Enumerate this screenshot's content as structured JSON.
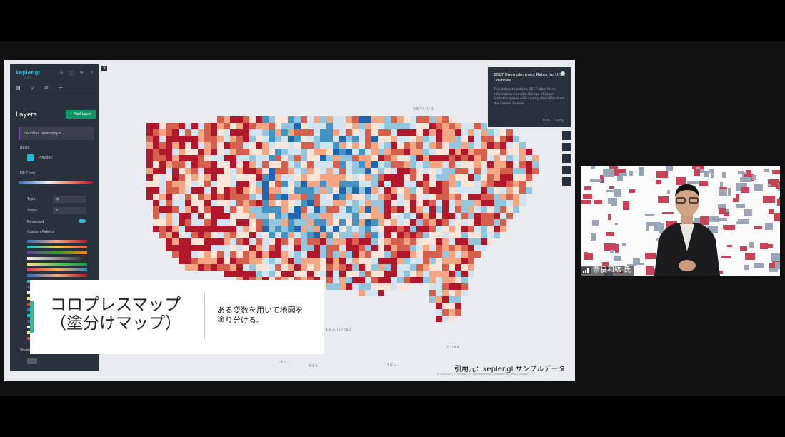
{
  "kepler": {
    "logo": "kepler.gl",
    "version": "2.2.1",
    "panel_title": "Layers",
    "add_layer_label": "+ Add Layer",
    "layer_name": "counties unemploym...",
    "basic_label": "Basic",
    "layer_type": "Polygon",
    "fill_color_label": "Fill Color",
    "type_label": "Type",
    "type_value": "qt",
    "steps_label": "Steps",
    "steps_value": "6",
    "reversed_label": "Reversed",
    "custom_palette_label": "Custom Palette",
    "stroke_label": "Stroke"
  },
  "map": {
    "labels": {
      "ontario": "ONTARIO",
      "tamaulipas": "TAMAULIPAS",
      "cuba": "CUBA",
      "jalisco": "JAL.",
      "mexico": "MÉX.",
      "yucatan": "YUC."
    },
    "legend": {
      "title": "2017 Unemployment Rates for U.S. Counties",
      "description": "This dataset contains 2017 labor force information from the Bureau of Labor Statistics joined with county shapefiles from the Census Bureau",
      "data_label": "Data",
      "config_label": "Config"
    },
    "attribution": "© kepler.gl  |  © Mapbox  |  © OpenStreetMap  |  Improve this map  |  mapbox"
  },
  "caption": {
    "main_line1": "コロプレスマップ",
    "main_line2": "（塗分けマップ）",
    "sub_line1": "ある変数を用いて地図を",
    "sub_line2": "塗り分ける。"
  },
  "credit": "引用元：kepler.gl サンプルデータ",
  "participant": {
    "name": "奈良和紘 氏"
  },
  "colors": {
    "accent": "#2ebc8a",
    "kepler_panel": "#29323c",
    "red": "#d9302d",
    "blue": "#2e6fb8"
  }
}
